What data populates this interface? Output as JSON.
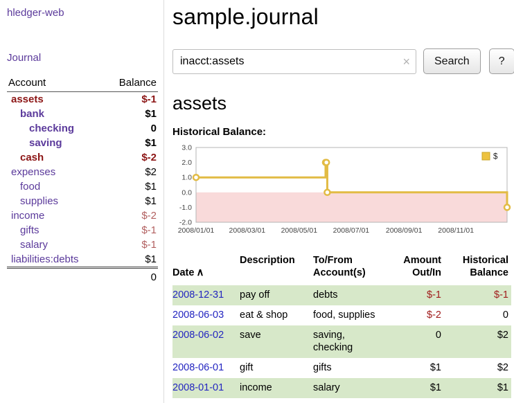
{
  "sidebar": {
    "brand": "hledger-web",
    "journal_label": "Journal",
    "columns": [
      "Account",
      "Balance"
    ],
    "accounts": [
      {
        "name": "assets",
        "balance": "$-1",
        "level": 1,
        "bold": true,
        "name_neg": true,
        "bal_neg": true
      },
      {
        "name": "bank",
        "balance": "$1",
        "level": 2,
        "bold": true,
        "name_neg": false,
        "bal_neg": false
      },
      {
        "name": "checking",
        "balance": "0",
        "level": 3,
        "bold": true,
        "name_neg": false,
        "bal_neg": false
      },
      {
        "name": "saving",
        "balance": "$1",
        "level": 3,
        "bold": true,
        "name_neg": false,
        "bal_neg": false
      },
      {
        "name": "cash",
        "balance": "$-2",
        "level": 2,
        "bold": true,
        "name_neg": true,
        "bal_neg": true
      },
      {
        "name": "expenses",
        "balance": "$2",
        "level": 1,
        "bold": false,
        "name_neg": false,
        "bal_neg": false
      },
      {
        "name": "food",
        "balance": "$1",
        "level": 2,
        "bold": false,
        "name_neg": false,
        "bal_neg": false
      },
      {
        "name": "supplies",
        "balance": "$1",
        "level": 2,
        "bold": false,
        "name_neg": false,
        "bal_neg": false
      },
      {
        "name": "income",
        "balance": "$-2",
        "level": 1,
        "bold": false,
        "name_neg": false,
        "bal_neg": true
      },
      {
        "name": "gifts",
        "balance": "$-1",
        "level": 2,
        "bold": false,
        "name_neg": false,
        "bal_neg": true
      },
      {
        "name": "salary",
        "balance": "$-1",
        "level": 2,
        "bold": false,
        "name_neg": false,
        "bal_neg": true
      },
      {
        "name": "liabilities:debts",
        "balance": "$1",
        "level": 1,
        "bold": false,
        "name_neg": false,
        "bal_neg": false
      }
    ],
    "total": "0"
  },
  "main": {
    "title": "sample.journal",
    "search": {
      "value": "inacct:assets",
      "button_label": "Search",
      "help_label": "?"
    },
    "account_heading": "assets",
    "chart_title": "Historical Balance:"
  },
  "chart_data": {
    "type": "line",
    "step": true,
    "title": "Historical Balance:",
    "legend": [
      {
        "label": "$",
        "color": "#edc240"
      }
    ],
    "legend_position": "top-right",
    "x": [
      "2008-01-01",
      "2008-06-01",
      "2008-06-02",
      "2008-06-03",
      "2008-12-31"
    ],
    "y": [
      1,
      2,
      2,
      0,
      -1
    ],
    "xlim": [
      "2008-01-01",
      "2008-12-31"
    ],
    "ylim": [
      -2,
      3
    ],
    "yticks": [
      3.0,
      2.0,
      1.0,
      0.0,
      -1.0,
      -2.0
    ],
    "xticks": [
      "2008/01/01",
      "2008/03/01",
      "2008/05/01",
      "2008/07/01",
      "2008/09/01",
      "2008/11/01"
    ],
    "line_color": "#e2bb44",
    "negative_region_color": "#f9dada",
    "grid": false
  },
  "register": {
    "headers": {
      "date": "Date",
      "description": "Description",
      "account": "To/From\nAccount(s)",
      "amount": "Amount\nOut/In",
      "balance": "Historical\nBalance"
    },
    "sort": "ascending",
    "rows": [
      {
        "date": "2008-12-31",
        "description": "pay off",
        "accounts": "debts",
        "amount": "$-1",
        "balance": "$-1",
        "amount_neg": true,
        "balance_neg": true
      },
      {
        "date": "2008-06-03",
        "description": "eat & shop",
        "accounts": "food, supplies",
        "amount": "$-2",
        "balance": "0",
        "amount_neg": true,
        "balance_neg": false
      },
      {
        "date": "2008-06-02",
        "description": "save",
        "accounts": "saving, checking",
        "amount": "0",
        "balance": "$2",
        "amount_neg": false,
        "balance_neg": false
      },
      {
        "date": "2008-06-01",
        "description": "gift",
        "accounts": "gifts",
        "amount": "$1",
        "balance": "$2",
        "amount_neg": false,
        "balance_neg": false
      },
      {
        "date": "2008-01-01",
        "description": "income",
        "accounts": "salary",
        "amount": "$1",
        "balance": "$1",
        "amount_neg": false,
        "balance_neg": false
      }
    ]
  },
  "icons": {
    "sort_asc": "∧",
    "clear_search": "×"
  },
  "colors": {
    "link_purple": "#5b3a9b",
    "date_link_blue": "#2325c0",
    "neg_strong": "#8c1515",
    "neg_soft": "#b26060",
    "neg_register": "#a01c1c",
    "row_green": "#d7e8c9",
    "chart_line": "#e2bb44",
    "chart_negative_fill": "#f9dada"
  }
}
